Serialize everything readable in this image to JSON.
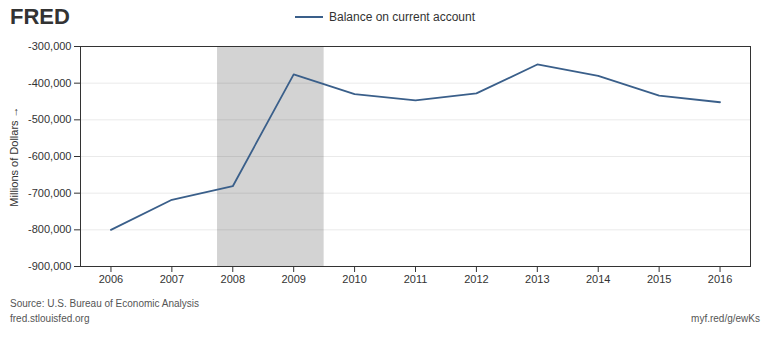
{
  "chart_data": {
    "type": "line",
    "ylabel": "Millions of Dollars",
    "x": [
      2006,
      2007,
      2008,
      2009,
      2010,
      2011,
      2012,
      2013,
      2014,
      2015,
      2016
    ],
    "series": [
      {
        "name": "Balance on current account",
        "color": "#3a5f8a",
        "values": [
          -800000,
          -718000,
          -681000,
          -376000,
          -430000,
          -447000,
          -428000,
          -349000,
          -380000,
          -434000,
          -452000
        ]
      }
    ],
    "xlim": [
      2005.5,
      2016.5
    ],
    "xticks": [
      2006,
      2007,
      2008,
      2009,
      2010,
      2011,
      2012,
      2013,
      2014,
      2015,
      2016
    ],
    "ylim": [
      -900000,
      -300000
    ],
    "yticks": [
      {
        "value": -900000,
        "label": "-900,000"
      },
      {
        "value": -800000,
        "label": "-800,000"
      },
      {
        "value": -700000,
        "label": "-700,000"
      },
      {
        "value": -600000,
        "label": "-600,000"
      },
      {
        "value": -500000,
        "label": "-500,000"
      },
      {
        "value": -400000,
        "label": "-400,000"
      },
      {
        "value": -300000,
        "label": "-300,000"
      }
    ],
    "recession": {
      "start": 2007.75,
      "end": 2009.5,
      "color": "#d3d3d3"
    },
    "grid": "y",
    "legend": "top",
    "annotations": [
      "FRED",
      "Source: U.S. Bureau of Economic Analysis",
      "fred.stlouisfed.org",
      "myf.red/g/ewKs"
    ]
  }
}
